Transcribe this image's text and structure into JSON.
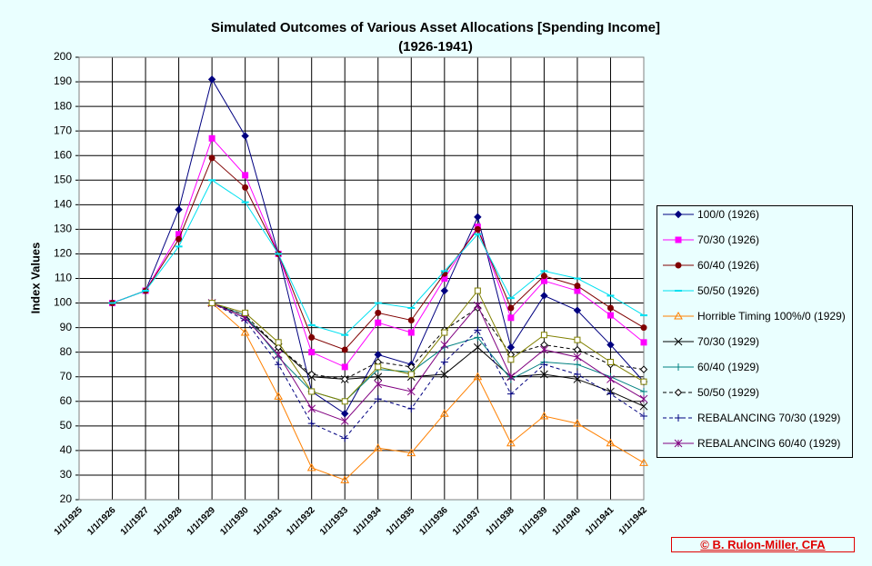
{
  "chart_data": {
    "type": "line",
    "title": "Simulated Outcomes of Various Asset Allocations [Spending Income]",
    "subtitle": "(1926-1941)",
    "y_label": "Index Values",
    "categories": [
      "1/1/1925",
      "1/1/1926",
      "1/1/1927",
      "1/1/1928",
      "1/1/1929",
      "1/1/1930",
      "1/1/1931",
      "1/1/1932",
      "1/1/1933",
      "1/1/1934",
      "1/1/1935",
      "1/1/1936",
      "1/1/1937",
      "1/1/1938",
      "1/1/1939",
      "1/1/1940",
      "1/1/1941",
      "1/1/1942"
    ],
    "ylim": [
      20,
      200
    ],
    "yticks": [
      20,
      30,
      40,
      50,
      60,
      70,
      80,
      90,
      100,
      110,
      120,
      130,
      140,
      150,
      160,
      170,
      180,
      190,
      200
    ],
    "grid": true,
    "series": [
      {
        "name": "100/0  (1926)",
        "color": "#000080",
        "marker": "diamond",
        "dash": false,
        "values": [
          null,
          100,
          105,
          138,
          191,
          168,
          120,
          64,
          55,
          79,
          75,
          105,
          135,
          82,
          103,
          97,
          83,
          68
        ]
      },
      {
        "name": "70/30  (1926)",
        "color": "#ff00ff",
        "marker": "square",
        "dash": false,
        "values": [
          null,
          100,
          105,
          128,
          167,
          152,
          120,
          80,
          74,
          92,
          88,
          110,
          131,
          94,
          109,
          105,
          95,
          84
        ]
      },
      {
        "name": "60/40  (1926)",
        "color": "#800000",
        "marker": "circle",
        "dash": false,
        "values": [
          null,
          100,
          105,
          126,
          159,
          147,
          120,
          86,
          81,
          96,
          93,
          112,
          130,
          98,
          111,
          107,
          98,
          90
        ]
      },
      {
        "name": "50/50  (1926)",
        "color": "#00e0f0",
        "marker": "dash",
        "dash": false,
        "values": [
          null,
          100,
          105,
          123,
          150,
          141,
          120,
          91,
          87,
          100,
          98,
          113,
          128,
          102,
          113,
          110,
          103,
          95
        ]
      },
      {
        "name": "Horrible Timing  100%/0 (1929)",
        "color": "#ff8000",
        "marker": "triangle",
        "dash": false,
        "values": [
          null,
          null,
          null,
          null,
          100,
          88,
          62,
          33,
          28,
          41,
          39,
          55,
          70,
          43,
          54,
          51,
          43,
          35
        ]
      },
      {
        "name": "70/30  (1929)",
        "color": "#000000",
        "marker": "x",
        "dash": false,
        "values": [
          null,
          null,
          null,
          null,
          100,
          94,
          82,
          70,
          69,
          70,
          70,
          71,
          82,
          70,
          71,
          69,
          64,
          58
        ]
      },
      {
        "name": "60/40 (1929)",
        "color": "#008080",
        "marker": "plus",
        "dash": false,
        "values": [
          null,
          null,
          null,
          null,
          100,
          95,
          78,
          64,
          60,
          73,
          72,
          82,
          86,
          69,
          76,
          75,
          70,
          64
        ]
      },
      {
        "name": "50/50 (1929)",
        "color": "#000000",
        "marker": "odiamond",
        "dash": true,
        "values": [
          null,
          null,
          null,
          null,
          100,
          95,
          82,
          71,
          69,
          76,
          74,
          89,
          98,
          79,
          83,
          81,
          75,
          73
        ]
      },
      {
        "name": "REBALANCING  70/30 (1929)",
        "color": "#000080",
        "marker": "plus",
        "dash": true,
        "values": [
          null,
          null,
          null,
          null,
          100,
          93,
          75,
          51,
          45,
          61,
          57,
          76,
          89,
          63,
          75,
          71,
          63,
          54
        ]
      },
      {
        "name": "REBALANCING 60/40 (1929)",
        "color": "#800080",
        "marker": "star",
        "dash": false,
        "values": [
          null,
          null,
          null,
          null,
          100,
          94,
          79,
          57,
          52,
          67,
          64,
          83,
          99,
          70,
          81,
          78,
          69,
          61
        ]
      },
      {
        "color": "#808000",
        "marker": "osquare",
        "dash": false,
        "values": [
          null,
          null,
          null,
          null,
          100,
          96,
          84,
          64,
          60,
          74,
          71,
          88,
          105,
          77,
          87,
          85,
          76,
          68
        ]
      }
    ],
    "footer": "© B. Rulon-Miller, CFA"
  }
}
